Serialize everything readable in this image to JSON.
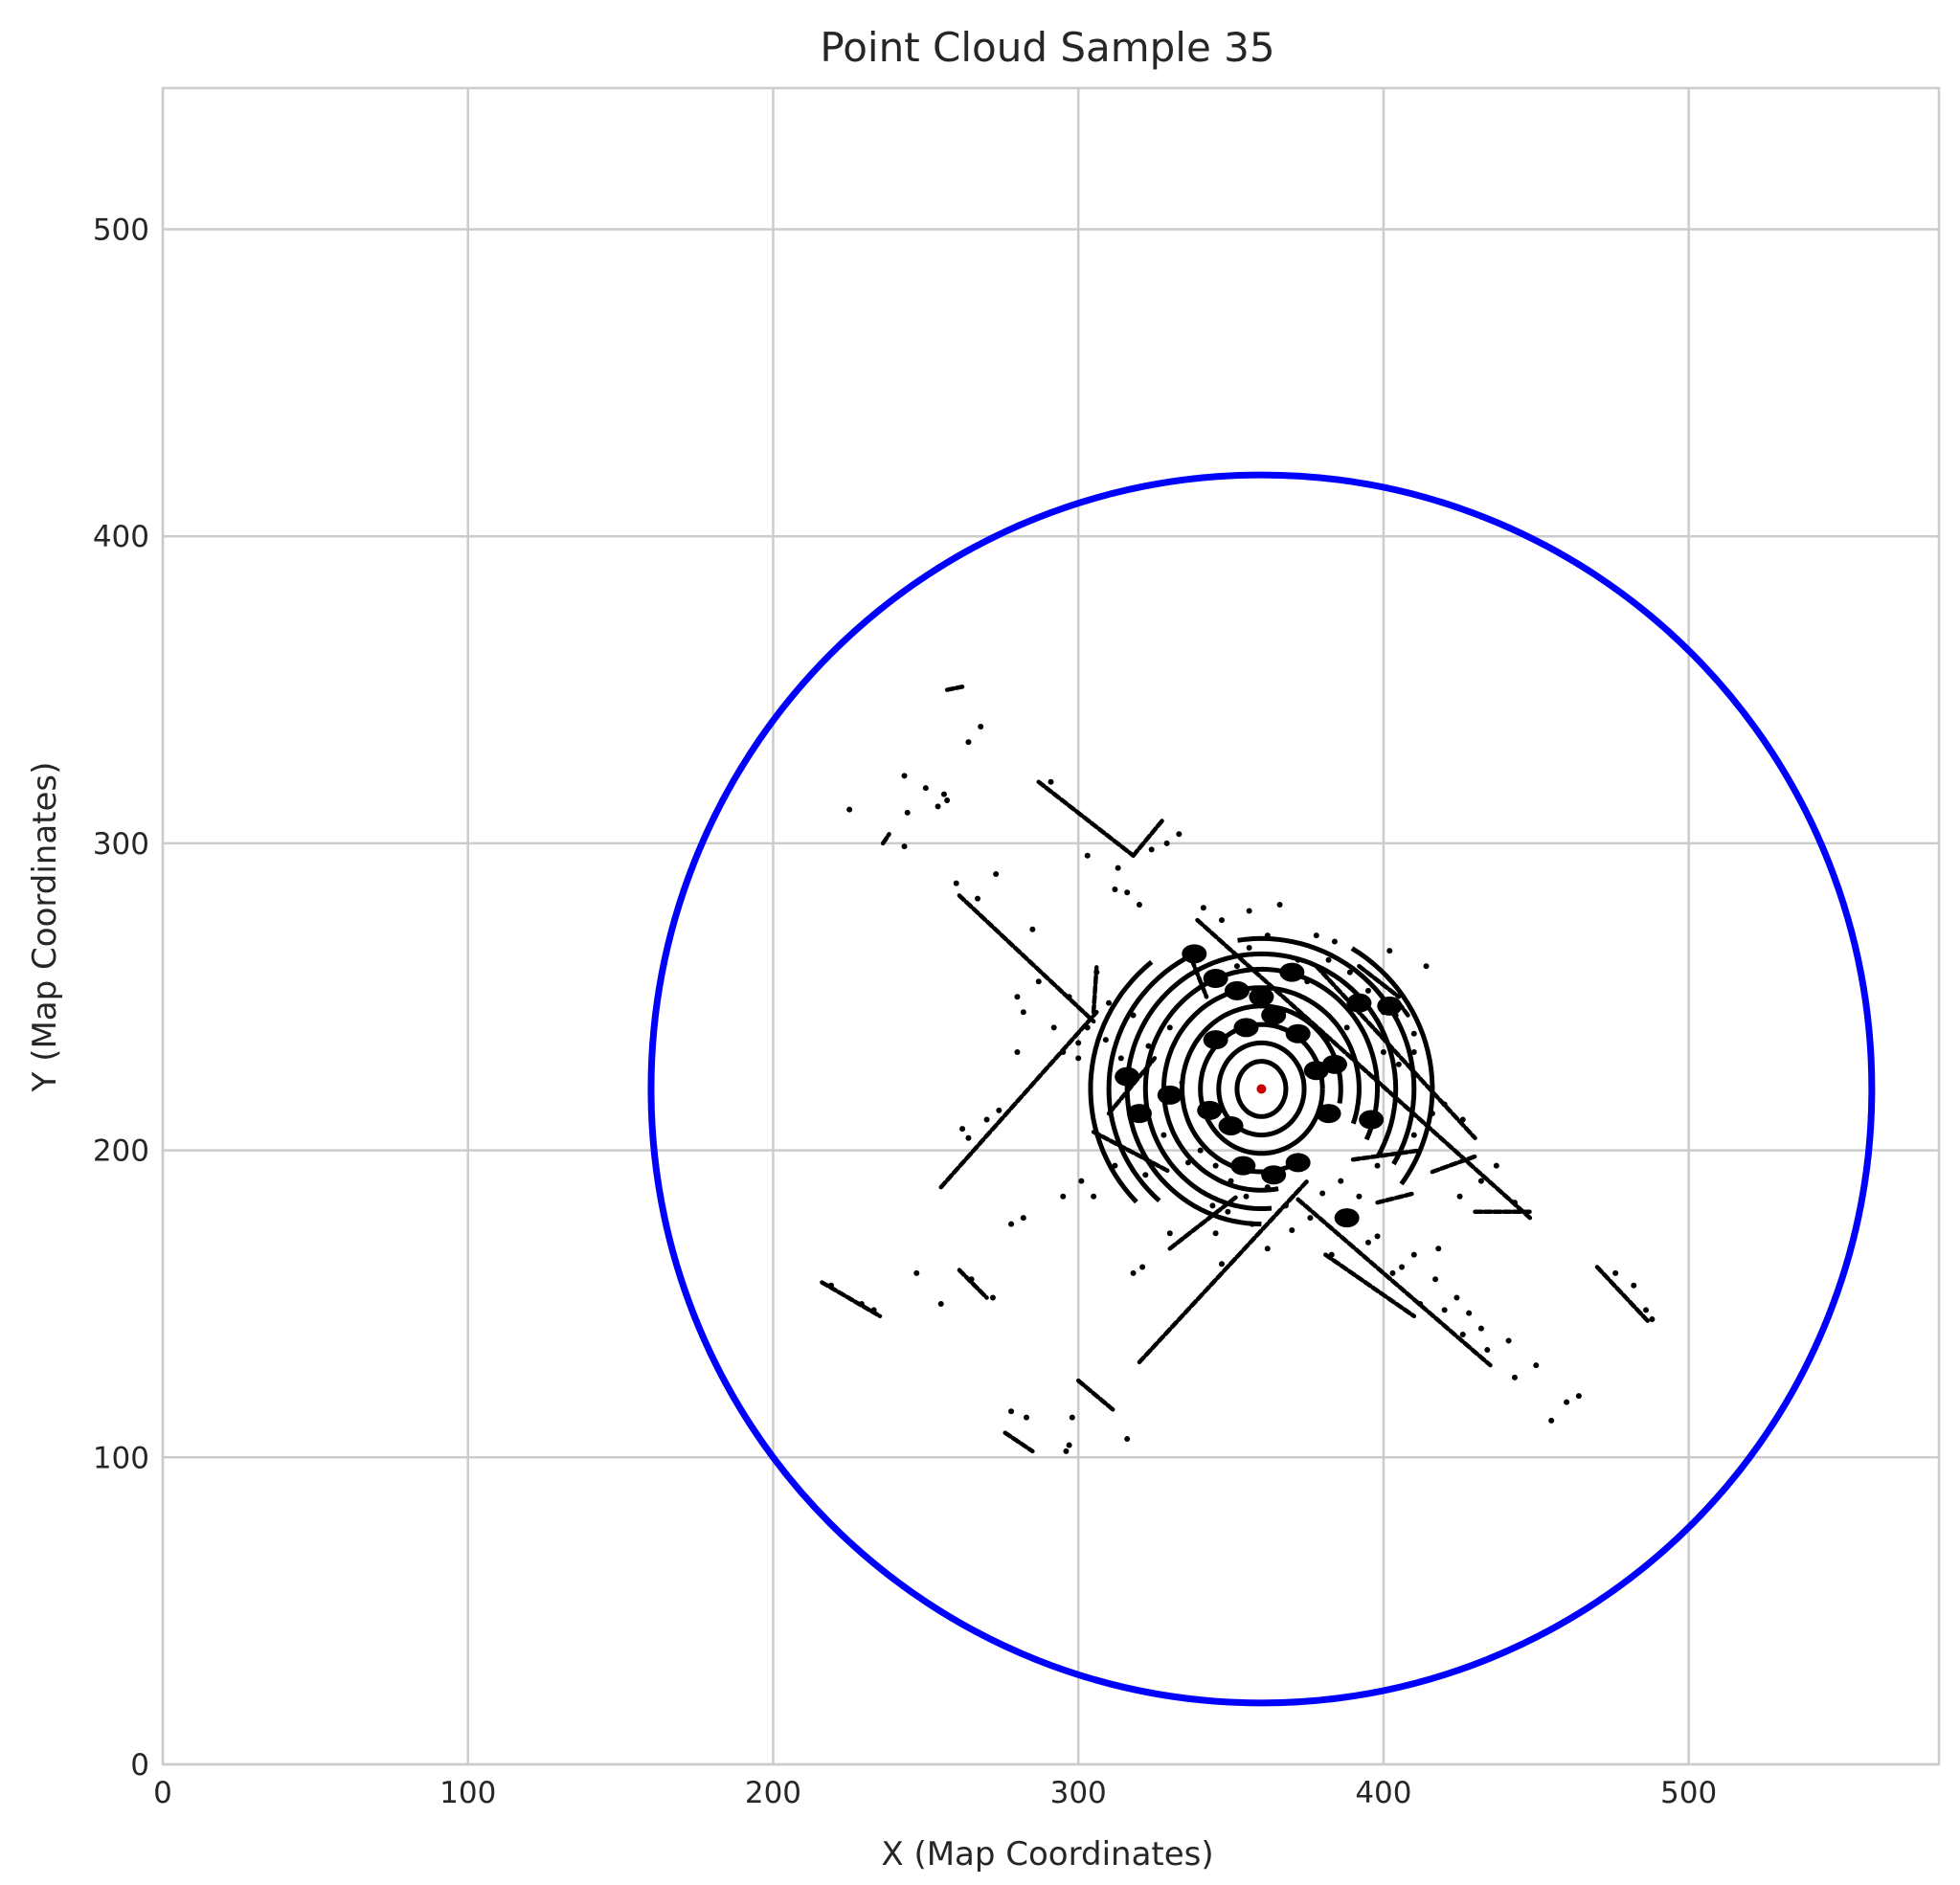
{
  "chart_data": {
    "type": "scatter",
    "title": "Point Cloud Sample 35",
    "xlabel": "X (Map Coordinates)",
    "ylabel": "Y (Map Coordinates)",
    "xlim": [
      0,
      582
    ],
    "ylim": [
      0,
      546
    ],
    "xticks": [
      0,
      100,
      200,
      300,
      400,
      500
    ],
    "yticks": [
      0,
      100,
      200,
      300,
      400,
      500
    ],
    "grid": true,
    "colors": {
      "points": "#000000",
      "circle": "#0000ff",
      "center": "#cc0000",
      "grid": "#cccccc"
    },
    "circle": {
      "center": [
        360,
        220
      ],
      "radius": 200
    },
    "center_marker": [
      360,
      220
    ],
    "segments": [
      {
        "from": [
          287,
          320
        ],
        "to": [
          318,
          296
        ]
      },
      {
        "from": [
          318,
          296
        ],
        "to": [
          328,
          308
        ]
      },
      {
        "from": [
          261,
          283
        ],
        "to": [
          305,
          242
        ]
      },
      {
        "from": [
          255,
          188
        ],
        "to": [
          306,
          245
        ]
      },
      {
        "from": [
          339,
          275
        ],
        "to": [
          448,
          178
        ]
      },
      {
        "from": [
          378,
          260
        ],
        "to": [
          430,
          204
        ]
      },
      {
        "from": [
          320,
          131
        ],
        "to": [
          375,
          190
        ]
      },
      {
        "from": [
          330,
          168
        ],
        "to": [
          352,
          185
        ]
      },
      {
        "from": [
          372,
          184
        ],
        "to": [
          435,
          130
        ]
      },
      {
        "from": [
          381,
          166
        ],
        "to": [
          410,
          146
        ]
      },
      {
        "from": [
          216,
          157
        ],
        "to": [
          235,
          146
        ]
      },
      {
        "from": [
          261,
          161
        ],
        "to": [
          270,
          152
        ]
      },
      {
        "from": [
          300,
          125
        ],
        "to": [
          312,
          115
        ]
      },
      {
        "from": [
          276,
          108
        ],
        "to": [
          285,
          102
        ]
      },
      {
        "from": [
          470,
          162
        ],
        "to": [
          487,
          144
        ]
      },
      {
        "from": [
          257,
          350
        ],
        "to": [
          262,
          351
        ]
      },
      {
        "from": [
          236,
          300
        ],
        "to": [
          238,
          303
        ]
      },
      {
        "from": [
          310,
          212
        ],
        "to": [
          325,
          230
        ]
      },
      {
        "from": [
          305,
          206
        ],
        "to": [
          330,
          193
        ]
      },
      {
        "from": [
          390,
          197
        ],
        "to": [
          412,
          200
        ]
      },
      {
        "from": [
          398,
          183
        ],
        "to": [
          410,
          186
        ]
      },
      {
        "from": [
          416,
          193
        ],
        "to": [
          430,
          198
        ]
      },
      {
        "from": [
          392,
          260
        ],
        "to": [
          405,
          250
        ]
      },
      {
        "from": [
          405,
          248
        ],
        "to": [
          408,
          244
        ]
      },
      {
        "from": [
          336,
          265
        ],
        "to": [
          342,
          250
        ]
      },
      {
        "from": [
          305,
          245
        ],
        "to": [
          306,
          260
        ]
      },
      {
        "from": [
          430,
          180
        ],
        "to": [
          448,
          180
        ]
      }
    ],
    "arcs": [
      {
        "rx": 8,
        "ry": 9,
        "from": 0,
        "to": 360
      },
      {
        "rx": 14,
        "ry": 15,
        "from": 0,
        "to": 360
      },
      {
        "rx": 20,
        "ry": 21,
        "from": 0,
        "to": 360
      },
      {
        "rx": 26,
        "ry": 27,
        "from": -10,
        "to": 290
      },
      {
        "rx": 32,
        "ry": 33,
        "from": -20,
        "to": 280
      },
      {
        "rx": 38,
        "ry": 39,
        "from": -25,
        "to": 275
      },
      {
        "rx": 44,
        "ry": 44,
        "from": -30,
        "to": 270
      },
      {
        "rx": 50,
        "ry": 49,
        "from": -30,
        "to": 100
      },
      {
        "rx": 50,
        "ry": 49,
        "from": 120,
        "to": 230
      },
      {
        "rx": 56,
        "ry": 54,
        "from": -35,
        "to": 60
      },
      {
        "rx": 56,
        "ry": 54,
        "from": 130,
        "to": 225
      }
    ],
    "blobs": [
      [
        338,
        264
      ],
      [
        345,
        256
      ],
      [
        345,
        236
      ],
      [
        352,
        252
      ],
      [
        355,
        240
      ],
      [
        364,
        244
      ],
      [
        372,
        238
      ],
      [
        384,
        228
      ],
      [
        392,
        248
      ],
      [
        402,
        247
      ],
      [
        343,
        213
      ],
      [
        350,
        208
      ],
      [
        354,
        195
      ],
      [
        364,
        192
      ],
      [
        372,
        196
      ],
      [
        388,
        178
      ],
      [
        330,
        218
      ],
      [
        320,
        212
      ],
      [
        316,
        224
      ],
      [
        382,
        212
      ],
      [
        396,
        210
      ],
      [
        378,
        226
      ],
      [
        360,
        250
      ],
      [
        370,
        258
      ]
    ],
    "scatter_points": [
      [
        225,
        311
      ],
      [
        243,
        322
      ],
      [
        250,
        318
      ],
      [
        256,
        316
      ],
      [
        264,
        333
      ],
      [
        268,
        338
      ],
      [
        244,
        310
      ],
      [
        254,
        312
      ],
      [
        257,
        314
      ],
      [
        243,
        299
      ],
      [
        291,
        320
      ],
      [
        303,
        296
      ],
      [
        313,
        292
      ],
      [
        324,
        298
      ],
      [
        333,
        303
      ],
      [
        260,
        287
      ],
      [
        267,
        282
      ],
      [
        273,
        290
      ],
      [
        285,
        272
      ],
      [
        287,
        255
      ],
      [
        297,
        250
      ],
      [
        310,
        248
      ],
      [
        300,
        235
      ],
      [
        295,
        232
      ],
      [
        282,
        245
      ],
      [
        280,
        232
      ],
      [
        274,
        213
      ],
      [
        262,
        207
      ],
      [
        282,
        178
      ],
      [
        278,
        176
      ],
      [
        295,
        185
      ],
      [
        301,
        190
      ],
      [
        305,
        185
      ],
      [
        312,
        195
      ],
      [
        322,
        192
      ],
      [
        330,
        173
      ],
      [
        345,
        173
      ],
      [
        349,
        180
      ],
      [
        318,
        160
      ],
      [
        321,
        162
      ],
      [
        347,
        163
      ],
      [
        283,
        113
      ],
      [
        278,
        115
      ],
      [
        296,
        102
      ],
      [
        297,
        104
      ],
      [
        298,
        113
      ],
      [
        316,
        106
      ],
      [
        383,
        166
      ],
      [
        395,
        170
      ],
      [
        406,
        162
      ],
      [
        417,
        158
      ],
      [
        424,
        152
      ],
      [
        428,
        147
      ],
      [
        432,
        142
      ],
      [
        441,
        138
      ],
      [
        443,
        126
      ],
      [
        450,
        130
      ],
      [
        455,
        112
      ],
      [
        460,
        118
      ],
      [
        418,
        168
      ],
      [
        425,
        185
      ],
      [
        432,
        190
      ],
      [
        437,
        195
      ],
      [
        443,
        183
      ],
      [
        414,
        260
      ],
      [
        402,
        265
      ],
      [
        395,
        252
      ],
      [
        400,
        245
      ],
      [
        347,
        275
      ],
      [
        356,
        278
      ],
      [
        362,
        270
      ],
      [
        375,
        255
      ],
      [
        382,
        262
      ],
      [
        389,
        258
      ],
      [
        388,
        240
      ],
      [
        404,
        244
      ],
      [
        410,
        238
      ],
      [
        320,
        280
      ],
      [
        316,
        284
      ],
      [
        329,
        300
      ],
      [
        341,
        279
      ],
      [
        312,
        285
      ],
      [
        306,
        258
      ],
      [
        303,
        240
      ],
      [
        309,
        236
      ],
      [
        314,
        230
      ],
      [
        366,
        280
      ],
      [
        372,
        262
      ],
      [
        340,
        200
      ],
      [
        345,
        195
      ],
      [
        350,
        190
      ],
      [
        355,
        185
      ],
      [
        362,
        188
      ],
      [
        368,
        182
      ],
      [
        376,
        178
      ],
      [
        380,
        186
      ],
      [
        398,
        172
      ],
      [
        410,
        166
      ],
      [
        403,
        160
      ],
      [
        412,
        150
      ],
      [
        420,
        148
      ],
      [
        426,
        140
      ],
      [
        434,
        135
      ],
      [
        464,
        120
      ],
      [
        476,
        160
      ],
      [
        482,
        156
      ],
      [
        486,
        148
      ],
      [
        488,
        145
      ],
      [
        247,
        160
      ],
      [
        255,
        150
      ],
      [
        265,
        158
      ],
      [
        272,
        152
      ],
      [
        229,
        150
      ],
      [
        233,
        148
      ],
      [
        219,
        156
      ],
      [
        280,
        250
      ],
      [
        292,
        240
      ],
      [
        300,
        230
      ],
      [
        270,
        210
      ],
      [
        264,
        204
      ],
      [
        330,
        240
      ],
      [
        334,
        222
      ],
      [
        323,
        234
      ],
      [
        318,
        244
      ],
      [
        328,
        205
      ],
      [
        336,
        196
      ],
      [
        344,
        182
      ],
      [
        357,
        176
      ],
      [
        362,
        168
      ],
      [
        370,
        174
      ],
      [
        386,
        190
      ],
      [
        392,
        185
      ],
      [
        398,
        195
      ],
      [
        410,
        205
      ],
      [
        416,
        212
      ],
      [
        420,
        215
      ],
      [
        426,
        210
      ],
      [
        405,
        228
      ],
      [
        410,
        232
      ],
      [
        400,
        232
      ],
      [
        378,
        270
      ],
      [
        384,
        268
      ],
      [
        352,
        260
      ],
      [
        356,
        266
      ]
    ]
  }
}
